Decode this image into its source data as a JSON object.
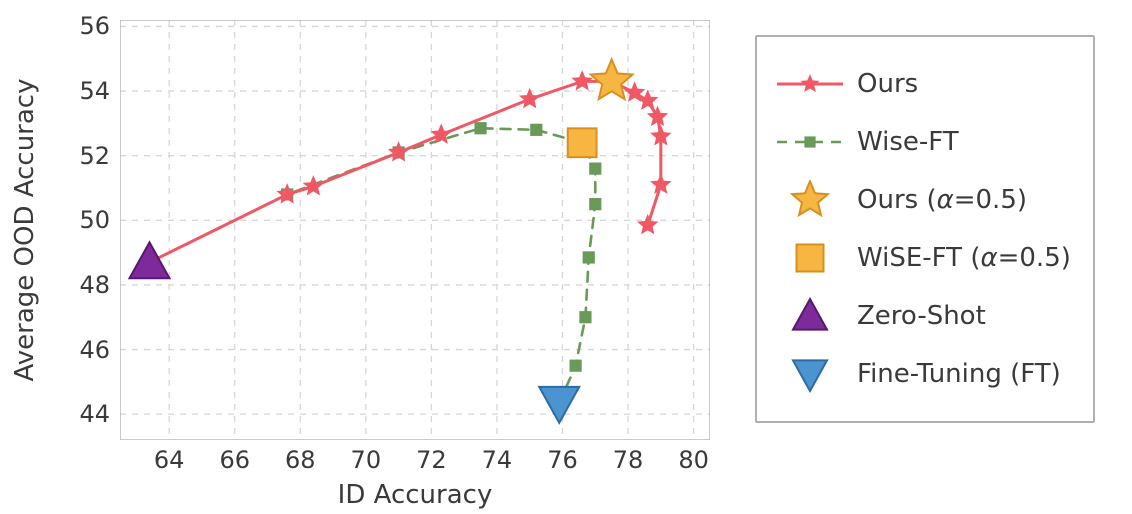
{
  "chart": {
    "type": "scatter-line",
    "xlabel": "ID Accuracy",
    "ylabel": "Average OOD Accuracy",
    "label_fontsize": 26,
    "tick_fontsize": 24,
    "xlim": [
      62.5,
      80.5
    ],
    "ylim": [
      43.2,
      56.2
    ],
    "xticks": [
      64,
      66,
      68,
      70,
      72,
      74,
      76,
      78,
      80
    ],
    "yticks": [
      44,
      46,
      48,
      50,
      52,
      54,
      56
    ],
    "background_color": "#ffffff",
    "grid_color": "#d7d7d7",
    "grid_dash": "6,6",
    "axis_color": "#b8b8b8",
    "series": {
      "ours": {
        "label": "Ours",
        "color": "#ef5864",
        "linestyle": "solid",
        "linewidth": 3,
        "marker": "star",
        "markersize": 10,
        "x": [
          63.4,
          67.6,
          68.4,
          71.0,
          72.3,
          75.0,
          76.6,
          77.5,
          78.2,
          78.6,
          78.9,
          79.0,
          79.0,
          78.6
        ],
        "y": [
          48.7,
          50.8,
          51.05,
          52.1,
          52.65,
          53.75,
          54.3,
          54.3,
          53.95,
          53.7,
          53.2,
          52.6,
          51.1,
          49.85
        ]
      },
      "wiseft": {
        "label": "Wise-FT",
        "color": "#6a9a58",
        "linestyle": "dashed",
        "linewidth": 2.6,
        "dash": "10,8",
        "marker": "square",
        "markersize": 8,
        "x": [
          63.4,
          67.6,
          71.0,
          73.5,
          75.2,
          76.6,
          77.0,
          77.0,
          76.8,
          76.7,
          76.4,
          75.9
        ],
        "y": [
          48.7,
          50.8,
          52.1,
          52.85,
          52.8,
          52.4,
          51.6,
          50.5,
          48.85,
          47.0,
          45.5,
          44.35
        ]
      }
    },
    "points": {
      "ours_alpha": {
        "label": "Ours (α=0.5)",
        "color_fill": "#f7b642",
        "color_edge": "#d98f1f",
        "marker": "star",
        "markersize": 22,
        "x": 77.5,
        "y": 54.3
      },
      "wiseft_alpha": {
        "label": "WiSE-FT (α=0.5)",
        "color_fill": "#f7b642",
        "color_edge": "#d98f1f",
        "marker": "square",
        "markersize": 18,
        "x": 76.6,
        "y": 52.4
      },
      "zeroshot": {
        "label": "Zero-Shot",
        "color_fill": "#7d2b9b",
        "color_edge": "#57186f",
        "marker": "triangle-up",
        "markersize": 20,
        "x": 63.4,
        "y": 48.7
      },
      "finetune": {
        "label": "Fine-Tuning (FT)",
        "color_fill": "#4b94cf",
        "color_edge": "#2c6ca3",
        "marker": "triangle-down",
        "markersize": 20,
        "x": 75.9,
        "y": 44.35
      }
    },
    "legend": {
      "border_color": "#b0b0b0",
      "fontsize": 26,
      "items": [
        {
          "key": "ours",
          "label": "Ours"
        },
        {
          "key": "wiseft",
          "label": "Wise-FT"
        },
        {
          "key": "ours_alpha",
          "label_html": "Ours (<i>α</i>=0.5)"
        },
        {
          "key": "wiseft_alpha",
          "label_html": "WiSE-FT (<i>α</i>=0.5)"
        },
        {
          "key": "zeroshot",
          "label": "Zero-Shot"
        },
        {
          "key": "finetune",
          "label": "Fine-Tuning (FT)"
        }
      ]
    }
  }
}
